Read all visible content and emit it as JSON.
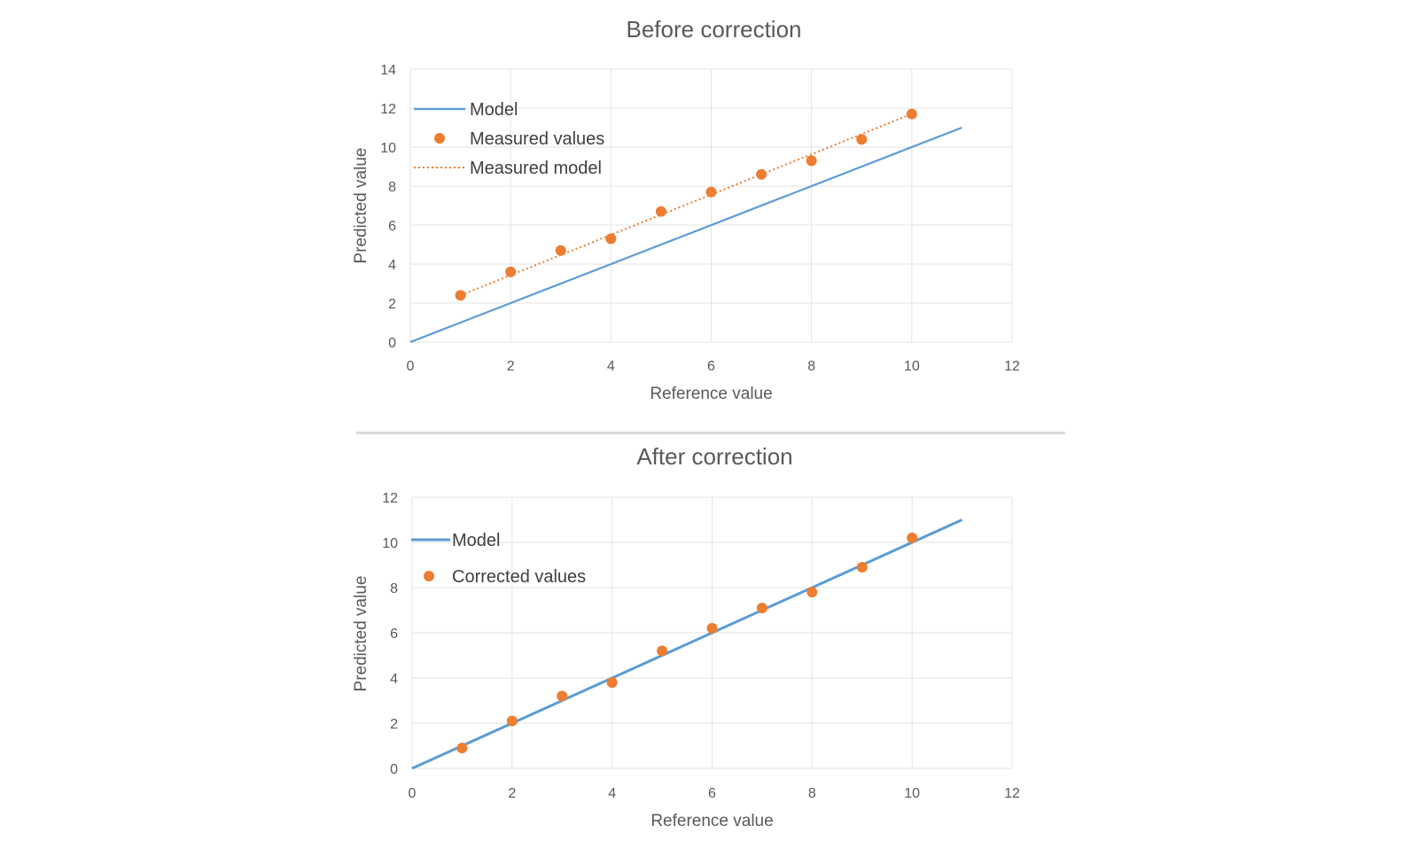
{
  "chart_data": [
    {
      "type": "scatter",
      "title": "Before correction",
      "xlabel": "Reference value",
      "ylabel": "Predicted value",
      "xlim": [
        0,
        12
      ],
      "ylim": [
        0,
        14
      ],
      "xticks": [
        "0",
        "2",
        "4",
        "6",
        "8",
        "10",
        "12"
      ],
      "yticks": [
        "0",
        "2",
        "4",
        "6",
        "8",
        "10",
        "12",
        "14"
      ],
      "grid": true,
      "legend_position": "top-left",
      "series": [
        {
          "name": "Model",
          "kind": "line",
          "color": "#5b9bd5",
          "x": [
            0,
            11
          ],
          "y": [
            0,
            11
          ]
        },
        {
          "name": "Measured values",
          "kind": "markers",
          "color": "#ed7d31",
          "x": [
            1,
            2,
            3,
            4,
            5,
            6,
            7,
            8,
            9,
            10
          ],
          "y": [
            2.4,
            3.6,
            4.7,
            5.3,
            6.7,
            7.7,
            8.6,
            9.3,
            10.4,
            11.7
          ]
        },
        {
          "name": "Measured model",
          "kind": "dotted-line",
          "color": "#ed7d31",
          "x": [
            1,
            10
          ],
          "y": [
            2.4,
            11.7
          ]
        }
      ]
    },
    {
      "type": "scatter",
      "title": "After correction",
      "xlabel": "Reference value",
      "ylabel": "Predicted value",
      "xlim": [
        0,
        12
      ],
      "ylim": [
        0,
        12
      ],
      "xticks": [
        "0",
        "2",
        "4",
        "6",
        "8",
        "10",
        "12"
      ],
      "yticks": [
        "0",
        "2",
        "4",
        "6",
        "8",
        "10",
        "12"
      ],
      "grid": true,
      "legend_position": "top-left",
      "series": [
        {
          "name": "Model",
          "kind": "line",
          "color": "#5b9bd5",
          "x": [
            0,
            11
          ],
          "y": [
            0,
            11
          ]
        },
        {
          "name": "Corrected values",
          "kind": "markers",
          "color": "#ed7d31",
          "x": [
            1,
            2,
            3,
            4,
            5,
            6,
            7,
            8,
            9,
            10
          ],
          "y": [
            0.9,
            2.1,
            3.2,
            3.8,
            5.2,
            6.2,
            7.1,
            7.8,
            8.9,
            10.2
          ]
        }
      ]
    }
  ]
}
